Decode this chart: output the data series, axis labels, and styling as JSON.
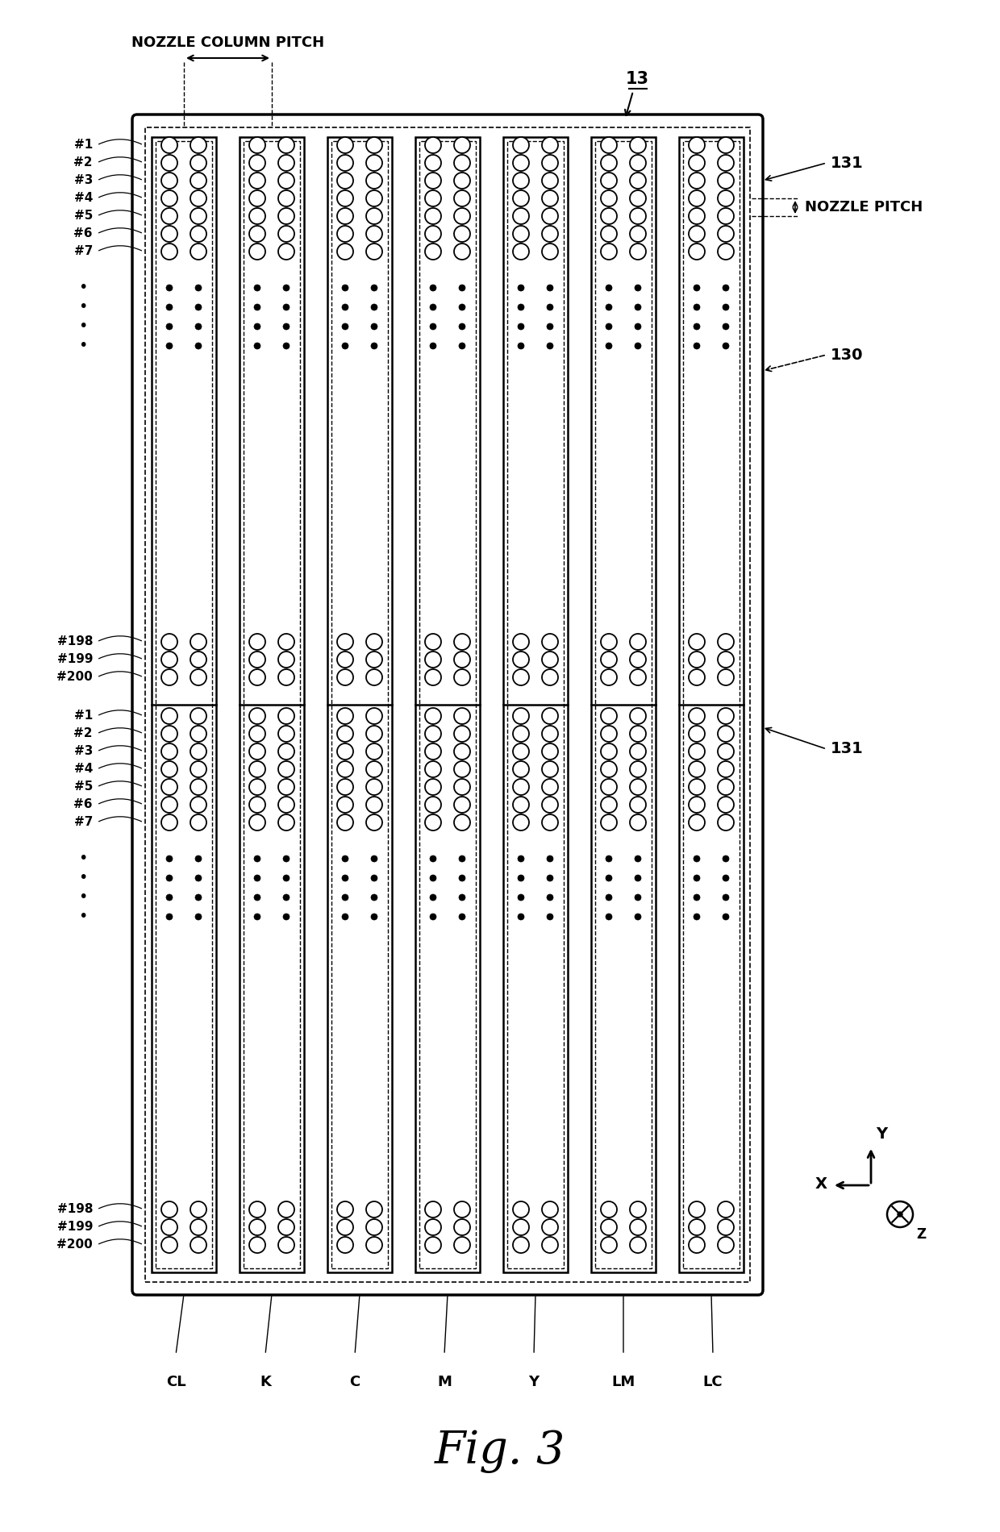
{
  "fig_title": "Fig. 3",
  "label_13": "13",
  "label_130": "130",
  "label_131_top": "131",
  "label_131_mid": "131",
  "label_nozzle_column_pitch": "NOZZLE COLUMN PITCH",
  "label_nozzle_pitch": "NOZZLE PITCH",
  "channel_labels": [
    "CL",
    "K",
    "C",
    "M",
    "Y",
    "LM",
    "LC"
  ],
  "row_labels_top1": [
    "#1",
    "#2",
    "#3",
    "#4",
    "#5",
    "#6",
    "#7"
  ],
  "row_labels_top2": [
    "#198",
    "#199",
    "#200"
  ],
  "row_labels_mid1": [
    "#1",
    "#2",
    "#3",
    "#4",
    "#5",
    "#6",
    "#7"
  ],
  "row_labels_bot": [
    "#198",
    "#199",
    "#200"
  ],
  "bg_color": "#ffffff",
  "line_color": "#000000"
}
